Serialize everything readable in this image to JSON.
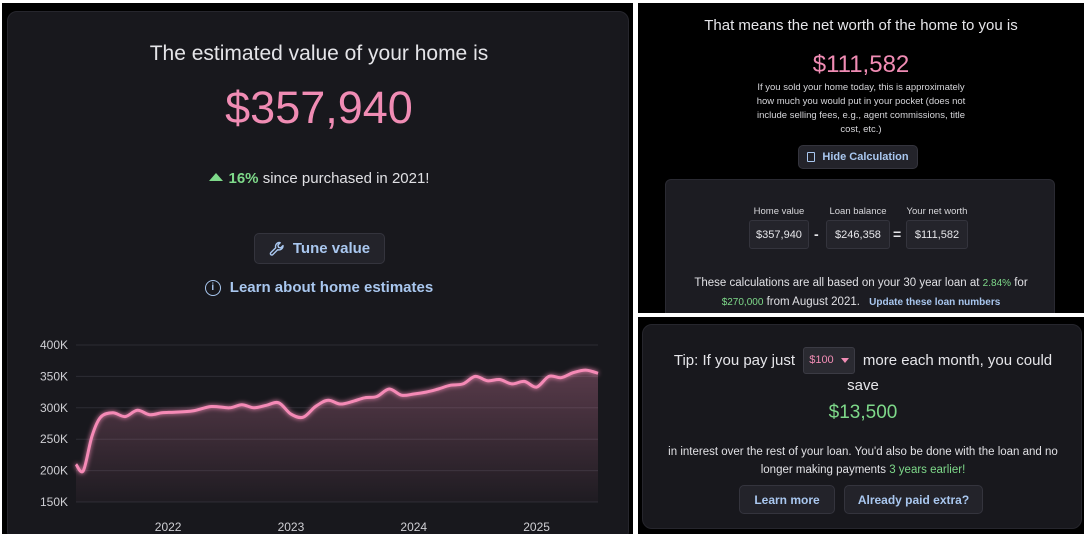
{
  "estimate": {
    "title": "The estimated value of your home is",
    "value": "$357,940",
    "change_pct": "16%",
    "change_text": " since purchased in 2021!",
    "tune_label": "Tune value",
    "learn_label": "Learn about home estimates"
  },
  "chart_data": {
    "type": "area",
    "x_ticks": [
      "2022",
      "2023",
      "2024",
      "2025"
    ],
    "y_ticks": [
      "400K",
      "350K",
      "300K",
      "250K",
      "200K",
      "150K"
    ],
    "ylim": [
      150000,
      400000
    ],
    "x_range": [
      2021.25,
      2025.5
    ],
    "series": [
      {
        "x": [
          2021.25,
          2021.31,
          2021.38,
          2021.45,
          2021.55,
          2021.65,
          2021.75,
          2021.85,
          2021.95,
          2022.05,
          2022.2,
          2022.35,
          2022.5,
          2022.6,
          2022.7,
          2022.8,
          2022.9,
          2023.0,
          2023.1,
          2023.2,
          2023.3,
          2023.4,
          2023.5,
          2023.6,
          2023.7,
          2023.8,
          2023.9,
          2024.0,
          2024.1,
          2024.2,
          2024.3,
          2024.4,
          2024.5,
          2024.6,
          2024.7,
          2024.8,
          2024.9,
          2025.0,
          2025.1,
          2025.2,
          2025.3,
          2025.4,
          2025.5
        ],
        "values": [
          210000,
          200000,
          255000,
          285000,
          292000,
          286000,
          296000,
          289000,
          292000,
          293000,
          295000,
          302000,
          300000,
          305000,
          300000,
          304000,
          308000,
          290000,
          285000,
          302000,
          312000,
          306000,
          310000,
          316000,
          318000,
          330000,
          320000,
          322000,
          325000,
          330000,
          336000,
          338000,
          350000,
          343000,
          345000,
          338000,
          342000,
          333000,
          350000,
          348000,
          356000,
          360000,
          355000
        ]
      }
    ]
  },
  "networth": {
    "title": "That means the net worth of the home to you is",
    "value": "$111,582",
    "note": "If you sold your home today, this is approximately how much you would put in your pocket (does not include selling fees, e.g., agent commissions, title cost, etc.)",
    "hide_label": "Hide Calculation",
    "calc": {
      "home_value_label": "Home value",
      "home_value": "$357,940",
      "loan_balance_label": "Loan balance",
      "loan_balance": "$246,358",
      "net_worth_label": "Your net worth",
      "net_worth": "$111,582",
      "minus": "-",
      "equals": "="
    },
    "based_prefix": "These calculations are all based on your 30 year loan at ",
    "rate": "2.84%",
    "based_for": " for ",
    "loan_amount": "$270,000",
    "based_from": " from August 2021.",
    "update_link": "Update these loan numbers"
  },
  "tip": {
    "prefix": "Tip: If you pay just",
    "amount_option": "$100",
    "suffix": "more each month, you could save",
    "savings": "$13,500",
    "note_prefix": "in interest over the rest of your loan. You'd also be done with the loan and no longer making payments ",
    "earlier": "3 years earlier!",
    "learn_more_label": "Learn more",
    "already_paid_label": "Already paid extra?"
  },
  "colors": {
    "accent_pink": "#f08cb4",
    "accent_green": "#7ed98a",
    "link_blue": "#a9c7ef",
    "card_bg": "#18181d"
  }
}
